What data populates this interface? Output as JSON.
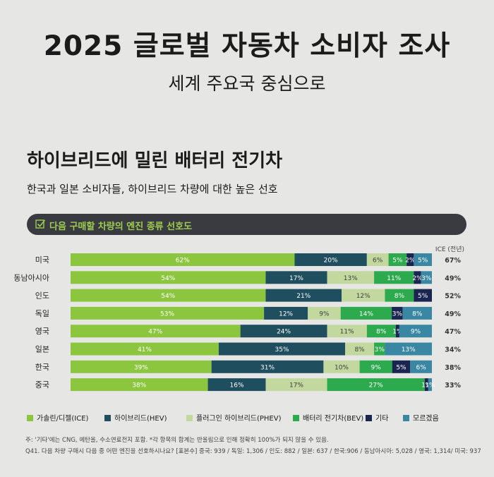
{
  "header": {
    "title": "2025 글로벌 자동차 소비자 조사",
    "subtitle": "세계 주요국 중심으로"
  },
  "section": {
    "title": "하이브리드에 밀린 배터리 전기차",
    "subtitle": "한국과 일본 소비자들, 하이브리드 차량에 대한 높은 선호"
  },
  "question_bar": {
    "icon": "checkbox-icon",
    "label": "다음 구매할 차량의 엔진 종류 선호도"
  },
  "ice_prev_header": "ICE (전년)",
  "chart_data": {
    "type": "bar",
    "orientation": "horizontal",
    "stacked": true,
    "percent": true,
    "categories": [
      "미국",
      "동남아시아",
      "인도",
      "독일",
      "영국",
      "일본",
      "한국",
      "중국"
    ],
    "series": [
      {
        "name": "가솔린/디젤(ICE)",
        "color": "#8cc63f",
        "values": [
          62,
          54,
          54,
          53,
          47,
          41,
          39,
          38
        ]
      },
      {
        "name": "하이브리드(HEV)",
        "color": "#1f4e5f",
        "values": [
          20,
          17,
          21,
          12,
          24,
          35,
          31,
          16
        ]
      },
      {
        "name": "플러그인 하이브리드(PHEV)",
        "color": "#c2d89f",
        "values": [
          6,
          13,
          12,
          9,
          11,
          8,
          10,
          17
        ]
      },
      {
        "name": "배터리 전기차(BEV)",
        "color": "#2daa4e",
        "values": [
          5,
          11,
          8,
          14,
          8,
          3,
          9,
          27
        ]
      },
      {
        "name": "기타",
        "color": "#1b2650",
        "values": [
          2,
          2,
          5,
          3,
          1,
          0,
          5,
          1
        ]
      },
      {
        "name": "모르겠음",
        "color": "#3a87a3",
        "values": [
          5,
          3,
          0,
          8,
          9,
          13,
          6,
          1
        ]
      }
    ],
    "ice_previous_year": [
      "67%",
      "49%",
      "52%",
      "49%",
      "47%",
      "34%",
      "38%",
      "33%"
    ]
  },
  "footnotes": [
    "주: '기타'에는 CNG, 에탄올, 수소연료전지 포함. *각 항목의 합계는 반올림으로 인해 정확히 100%가 되지 않을 수 있음.",
    "Q41. 다음 차량 구매시 다음 중 어떤 엔진을 선호하시나요? [표본수] 중국: 939 / 독일: 1,306 / 인도: 882 / 일본: 637 / 한국:906 / 동남아시아: 5,028 / 영국: 1,314/ 미국: 937"
  ]
}
